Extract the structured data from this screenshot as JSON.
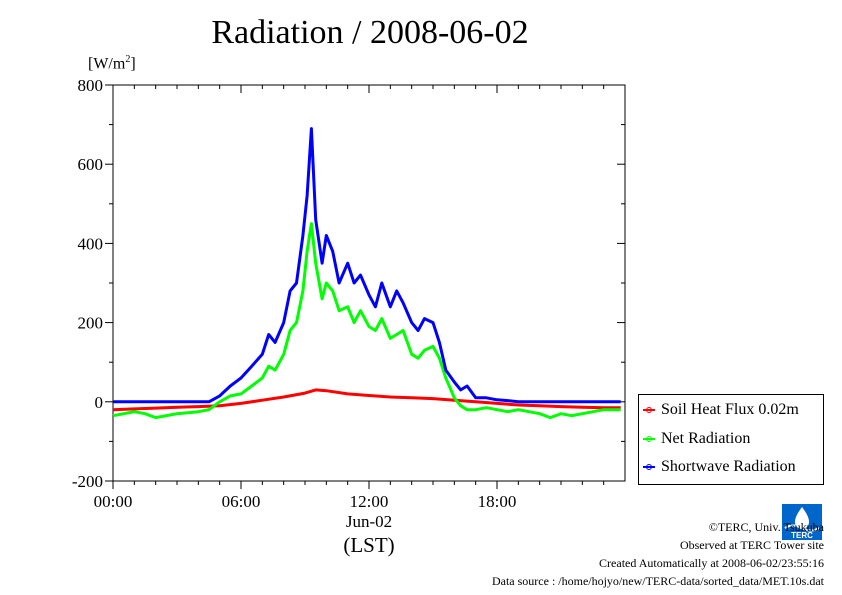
{
  "chart_data": {
    "type": "line",
    "title": "Radiation / 2008-06-02",
    "ylabel": "[W/m²]",
    "xlabel": "Jun-02",
    "xlabel2": "(LST)",
    "xlim": [
      0,
      24
    ],
    "ylim": [
      -200,
      800
    ],
    "yticks": [
      -200,
      0,
      200,
      400,
      600,
      800
    ],
    "xticks": [
      {
        "hour": 0,
        "label": "00:00"
      },
      {
        "hour": 6,
        "label": "06:00"
      },
      {
        "hour": 12,
        "label": "12:00"
      },
      {
        "hour": 18,
        "label": "18:00"
      }
    ],
    "grid": false,
    "legend": "right-bottom",
    "series": [
      {
        "name": "Soil Heat Flux 0.02m",
        "color": "#ff0000",
        "x": [
          0,
          1,
          2,
          3,
          4,
          5,
          6,
          7,
          8,
          9,
          9.5,
          10,
          11,
          12,
          13,
          14,
          15,
          16,
          17,
          18,
          19,
          20,
          21,
          22,
          23,
          23.8
        ],
        "y": [
          -20,
          -18,
          -16,
          -14,
          -12,
          -10,
          -4,
          4,
          12,
          22,
          30,
          28,
          20,
          16,
          12,
          10,
          8,
          4,
          0,
          -4,
          -8,
          -10,
          -12,
          -14,
          -15,
          -15
        ]
      },
      {
        "name": "Net Radiation",
        "color": "#00ff00",
        "x": [
          0,
          0.5,
          1,
          1.5,
          2,
          3,
          4,
          4.5,
          5,
          5.5,
          6,
          6.5,
          7,
          7.3,
          7.6,
          8,
          8.3,
          8.6,
          8.9,
          9.1,
          9.3,
          9.5,
          9.8,
          10,
          10.3,
          10.6,
          11,
          11.3,
          11.6,
          12,
          12.3,
          12.6,
          13,
          13.3,
          13.6,
          14,
          14.3,
          14.6,
          15,
          15.3,
          15.6,
          16,
          16.3,
          16.6,
          17,
          17.5,
          18,
          18.5,
          19,
          19.5,
          20,
          20.5,
          21,
          21.5,
          22,
          22.5,
          23,
          23.8
        ],
        "y": [
          -35,
          -30,
          -25,
          -30,
          -40,
          -30,
          -25,
          -20,
          0,
          15,
          20,
          40,
          60,
          90,
          80,
          120,
          180,
          200,
          280,
          380,
          450,
          350,
          260,
          300,
          280,
          230,
          240,
          200,
          230,
          190,
          180,
          210,
          160,
          170,
          180,
          120,
          110,
          130,
          140,
          110,
          60,
          10,
          -10,
          -20,
          -20,
          -15,
          -20,
          -25,
          -20,
          -25,
          -30,
          -40,
          -30,
          -35,
          -30,
          -25,
          -20,
          -20
        ]
      },
      {
        "name": "Shortwave Radiation",
        "color": "#0000ff",
        "x": [
          0,
          1,
          2,
          3,
          4,
          4.5,
          5,
          5.5,
          6,
          6.5,
          7,
          7.3,
          7.6,
          8,
          8.3,
          8.6,
          8.9,
          9.1,
          9.3,
          9.5,
          9.8,
          10,
          10.3,
          10.6,
          11,
          11.3,
          11.6,
          12,
          12.3,
          12.6,
          13,
          13.3,
          13.6,
          14,
          14.3,
          14.6,
          15,
          15.3,
          15.6,
          16,
          16.3,
          16.6,
          17,
          17.5,
          18,
          18.5,
          19,
          20,
          21,
          22,
          23,
          23.8
        ],
        "y": [
          0,
          0,
          0,
          0,
          0,
          0,
          15,
          40,
          60,
          90,
          120,
          170,
          150,
          200,
          280,
          300,
          420,
          520,
          690,
          460,
          350,
          420,
          380,
          300,
          350,
          300,
          320,
          270,
          240,
          300,
          240,
          280,
          250,
          200,
          180,
          210,
          200,
          150,
          80,
          50,
          30,
          40,
          10,
          10,
          5,
          3,
          0,
          0,
          0,
          0,
          0,
          0
        ]
      }
    ]
  },
  "legend_items": [
    {
      "label": "Soil Heat Flux 0.02m",
      "color": "#ff0000"
    },
    {
      "label": "Net Radiation",
      "color": "#00ff00"
    },
    {
      "label": "Shortwave Radiation",
      "color": "#0000ff"
    }
  ],
  "footer": {
    "copyright": "©TERC, Univ. Tsukuba",
    "observed": "Observed at TERC Tower site",
    "created": "Created Automatically at 2008-06-02/23:55:16",
    "source": "Data source : /home/hojyo/new/TERC-data/sorted_data/MET.10s.dat"
  },
  "logo": {
    "text": "TERC",
    "color": "#0066cc"
  }
}
